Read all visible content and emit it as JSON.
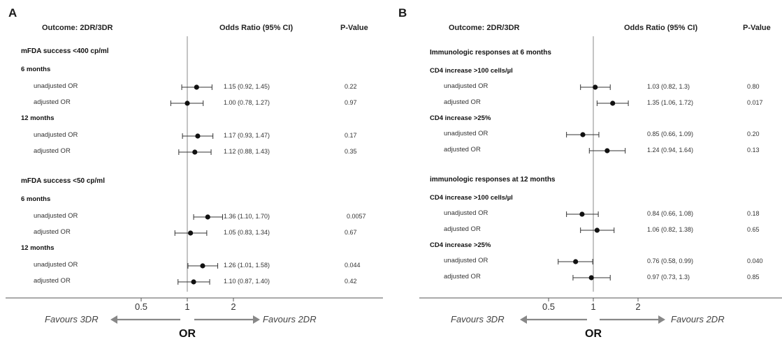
{
  "panels": [
    {
      "letter": "A",
      "header": {
        "outcome": "Outcome: 2DR/3DR",
        "or": "Odds Ratio (95% CI)",
        "p": "P-Value"
      },
      "axis": {
        "ticks": [
          {
            "value": 0.5,
            "label": "0.5"
          },
          {
            "value": 1,
            "label": "1"
          },
          {
            "value": 2,
            "label": "2"
          }
        ],
        "favours_left": "Favours 3DR",
        "favours_right": "Favours 2DR",
        "label": "OR",
        "scale": "log"
      },
      "groups": [
        {
          "title": "mFDA success <400 cp/ml",
          "subgroups": [
            {
              "title": "6 months",
              "rows": [
                {
                  "label": "unadjusted OR",
                  "or": 1.15,
                  "lo": 0.92,
                  "hi": 1.45,
                  "or_text": "1.15 (0.92, 1.45)",
                  "p": "0.22"
                },
                {
                  "label": "adjusted OR",
                  "or": 1.0,
                  "lo": 0.78,
                  "hi": 1.27,
                  "or_text": "1.00 (0.78, 1.27)",
                  "p": "0.97"
                }
              ]
            },
            {
              "title": "12 months",
              "rows": [
                {
                  "label": "unadjusted OR",
                  "or": 1.17,
                  "lo": 0.93,
                  "hi": 1.47,
                  "or_text": "1.17 (0.93, 1.47)",
                  "p": "0.17"
                },
                {
                  "label": "adjusted OR",
                  "or": 1.12,
                  "lo": 0.88,
                  "hi": 1.43,
                  "or_text": "1.12 (0.88, 1.43)",
                  "p": "0.35"
                }
              ]
            }
          ]
        },
        {
          "title": "mFDA success <50 cp/ml",
          "subgroups": [
            {
              "title": "6 months",
              "rows": [
                {
                  "label": "unadjusted OR",
                  "or": 1.36,
                  "lo": 1.1,
                  "hi": 1.7,
                  "or_text": "1.36 (1.10, 1.70)",
                  "p": "0.0057"
                },
                {
                  "label": "adjusted OR",
                  "or": 1.05,
                  "lo": 0.83,
                  "hi": 1.34,
                  "or_text": "1.05 (0.83, 1.34)",
                  "p": "0.67"
                }
              ]
            },
            {
              "title": "12 months",
              "rows": [
                {
                  "label": "unadjusted OR",
                  "or": 1.26,
                  "lo": 1.01,
                  "hi": 1.58,
                  "or_text": "1.26 (1.01, 1.58)",
                  "p": "0.044"
                },
                {
                  "label": "adjusted OR",
                  "or": 1.1,
                  "lo": 0.87,
                  "hi": 1.4,
                  "or_text": "1.10 (0.87, 1.40)",
                  "p": "0.42"
                }
              ]
            }
          ]
        }
      ]
    },
    {
      "letter": "B",
      "header": {
        "outcome": "Outcome: 2DR/3DR",
        "or": "Odds Ratio (95% CI)",
        "p": "P-Value"
      },
      "axis": {
        "ticks": [
          {
            "value": 0.5,
            "label": "0.5"
          },
          {
            "value": 1,
            "label": "1"
          },
          {
            "value": 2,
            "label": "2"
          }
        ],
        "favours_left": "Favours 3DR",
        "favours_right": "Favours 2DR",
        "label": "OR",
        "scale": "log"
      },
      "groups": [
        {
          "title": "Immunologic responses at 6 months",
          "subgroups": [
            {
              "title": "CD4 increase >100 cells/µl",
              "rows": [
                {
                  "label": "unadjusted OR",
                  "or": 1.03,
                  "lo": 0.82,
                  "hi": 1.3,
                  "or_text": "1.03 (0.82, 1.3)",
                  "p": "0.80"
                },
                {
                  "label": "adjusted OR",
                  "or": 1.35,
                  "lo": 1.06,
                  "hi": 1.72,
                  "or_text": "1.35 (1.06, 1.72)",
                  "p": "0.017"
                }
              ]
            },
            {
              "title": "CD4 increase >25%",
              "rows": [
                {
                  "label": "unadjusted OR",
                  "or": 0.85,
                  "lo": 0.66,
                  "hi": 1.09,
                  "or_text": "0.85 (0.66, 1.09)",
                  "p": "0.20"
                },
                {
                  "label": "adjusted OR",
                  "or": 1.24,
                  "lo": 0.94,
                  "hi": 1.64,
                  "or_text": "1.24 (0.94, 1.64)",
                  "p": "0.13"
                }
              ]
            }
          ]
        },
        {
          "title": "immunologic responses at 12 months",
          "subgroups": [
            {
              "title": "CD4 increase >100 cells/µl",
              "rows": [
                {
                  "label": "unadjusted OR",
                  "or": 0.84,
                  "lo": 0.66,
                  "hi": 1.08,
                  "or_text": "0.84 (0.66, 1.08)",
                  "p": "0.18"
                },
                {
                  "label": "adjusted OR",
                  "or": 1.06,
                  "lo": 0.82,
                  "hi": 1.38,
                  "or_text": "1.06 (0.82, 1.38)",
                  "p": "0.65"
                }
              ]
            },
            {
              "title": "CD4 increase >25%",
              "rows": [
                {
                  "label": "unadjusted OR",
                  "or": 0.76,
                  "lo": 0.58,
                  "hi": 0.99,
                  "or_text": "0.76 (0.58, 0.99)",
                  "p": "0.040"
                },
                {
                  "label": "adjusted OR",
                  "or": 0.97,
                  "lo": 0.73,
                  "hi": 1.3,
                  "or_text": "0.97 (0.73, 1.3)",
                  "p": "0.85"
                }
              ]
            }
          ]
        }
      ]
    }
  ],
  "chart_data": [
    {
      "type": "forest",
      "panel": "A",
      "scale": "log",
      "reference_line": 1,
      "xticks": [
        0.5,
        1,
        2
      ],
      "xlabel": "OR",
      "rows": [
        {
          "group": "mFDA success <400 cp/ml",
          "subgroup": "6 months",
          "label": "unadjusted OR",
          "or": 1.15,
          "ci": [
            0.92,
            1.45
          ],
          "p": "0.22"
        },
        {
          "group": "mFDA success <400 cp/ml",
          "subgroup": "6 months",
          "label": "adjusted OR",
          "or": 1.0,
          "ci": [
            0.78,
            1.27
          ],
          "p": "0.97"
        },
        {
          "group": "mFDA success <400 cp/ml",
          "subgroup": "12 months",
          "label": "unadjusted OR",
          "or": 1.17,
          "ci": [
            0.93,
            1.47
          ],
          "p": "0.17"
        },
        {
          "group": "mFDA success <400 cp/ml",
          "subgroup": "12 months",
          "label": "adjusted OR",
          "or": 1.12,
          "ci": [
            0.88,
            1.43
          ],
          "p": "0.35"
        },
        {
          "group": "mFDA success <50 cp/ml",
          "subgroup": "6 months",
          "label": "unadjusted OR",
          "or": 1.36,
          "ci": [
            1.1,
            1.7
          ],
          "p": "0.0057"
        },
        {
          "group": "mFDA success <50 cp/ml",
          "subgroup": "6 months",
          "label": "adjusted OR",
          "or": 1.05,
          "ci": [
            0.83,
            1.34
          ],
          "p": "0.67"
        },
        {
          "group": "mFDA success <50 cp/ml",
          "subgroup": "12 months",
          "label": "unadjusted OR",
          "or": 1.26,
          "ci": [
            1.01,
            1.58
          ],
          "p": "0.044"
        },
        {
          "group": "mFDA success <50 cp/ml",
          "subgroup": "12 months",
          "label": "adjusted OR",
          "or": 1.1,
          "ci": [
            0.87,
            1.4
          ],
          "p": "0.42"
        }
      ]
    },
    {
      "type": "forest",
      "panel": "B",
      "scale": "log",
      "reference_line": 1,
      "xticks": [
        0.5,
        1,
        2
      ],
      "xlabel": "OR",
      "rows": [
        {
          "group": "Immunologic responses at 6 months",
          "subgroup": "CD4 increase >100 cells/µl",
          "label": "unadjusted OR",
          "or": 1.03,
          "ci": [
            0.82,
            1.3
          ],
          "p": "0.80"
        },
        {
          "group": "Immunologic responses at 6 months",
          "subgroup": "CD4 increase >100 cells/µl",
          "label": "adjusted OR",
          "or": 1.35,
          "ci": [
            1.06,
            1.72
          ],
          "p": "0.017"
        },
        {
          "group": "Immunologic responses at 6 months",
          "subgroup": "CD4 increase >25%",
          "label": "unadjusted OR",
          "or": 0.85,
          "ci": [
            0.66,
            1.09
          ],
          "p": "0.20"
        },
        {
          "group": "Immunologic responses at 6 months",
          "subgroup": "CD4 increase >25%",
          "label": "adjusted OR",
          "or": 1.24,
          "ci": [
            0.94,
            1.64
          ],
          "p": "0.13"
        },
        {
          "group": "immunologic responses at 12 months",
          "subgroup": "CD4 increase >100 cells/µl",
          "label": "unadjusted OR",
          "or": 0.84,
          "ci": [
            0.66,
            1.08
          ],
          "p": "0.18"
        },
        {
          "group": "immunologic responses at 12 months",
          "subgroup": "CD4 increase >100 cells/µl",
          "label": "adjusted OR",
          "or": 1.06,
          "ci": [
            0.82,
            1.38
          ],
          "p": "0.65"
        },
        {
          "group": "immunologic responses at 12 months",
          "subgroup": "CD4 increase >25%",
          "label": "unadjusted OR",
          "or": 0.76,
          "ci": [
            0.58,
            0.99
          ],
          "p": "0.040"
        },
        {
          "group": "immunologic responses at 12 months",
          "subgroup": "CD4 increase >25%",
          "label": "adjusted OR",
          "or": 0.97,
          "ci": [
            0.73,
            1.3
          ],
          "p": "0.85"
        }
      ]
    }
  ]
}
